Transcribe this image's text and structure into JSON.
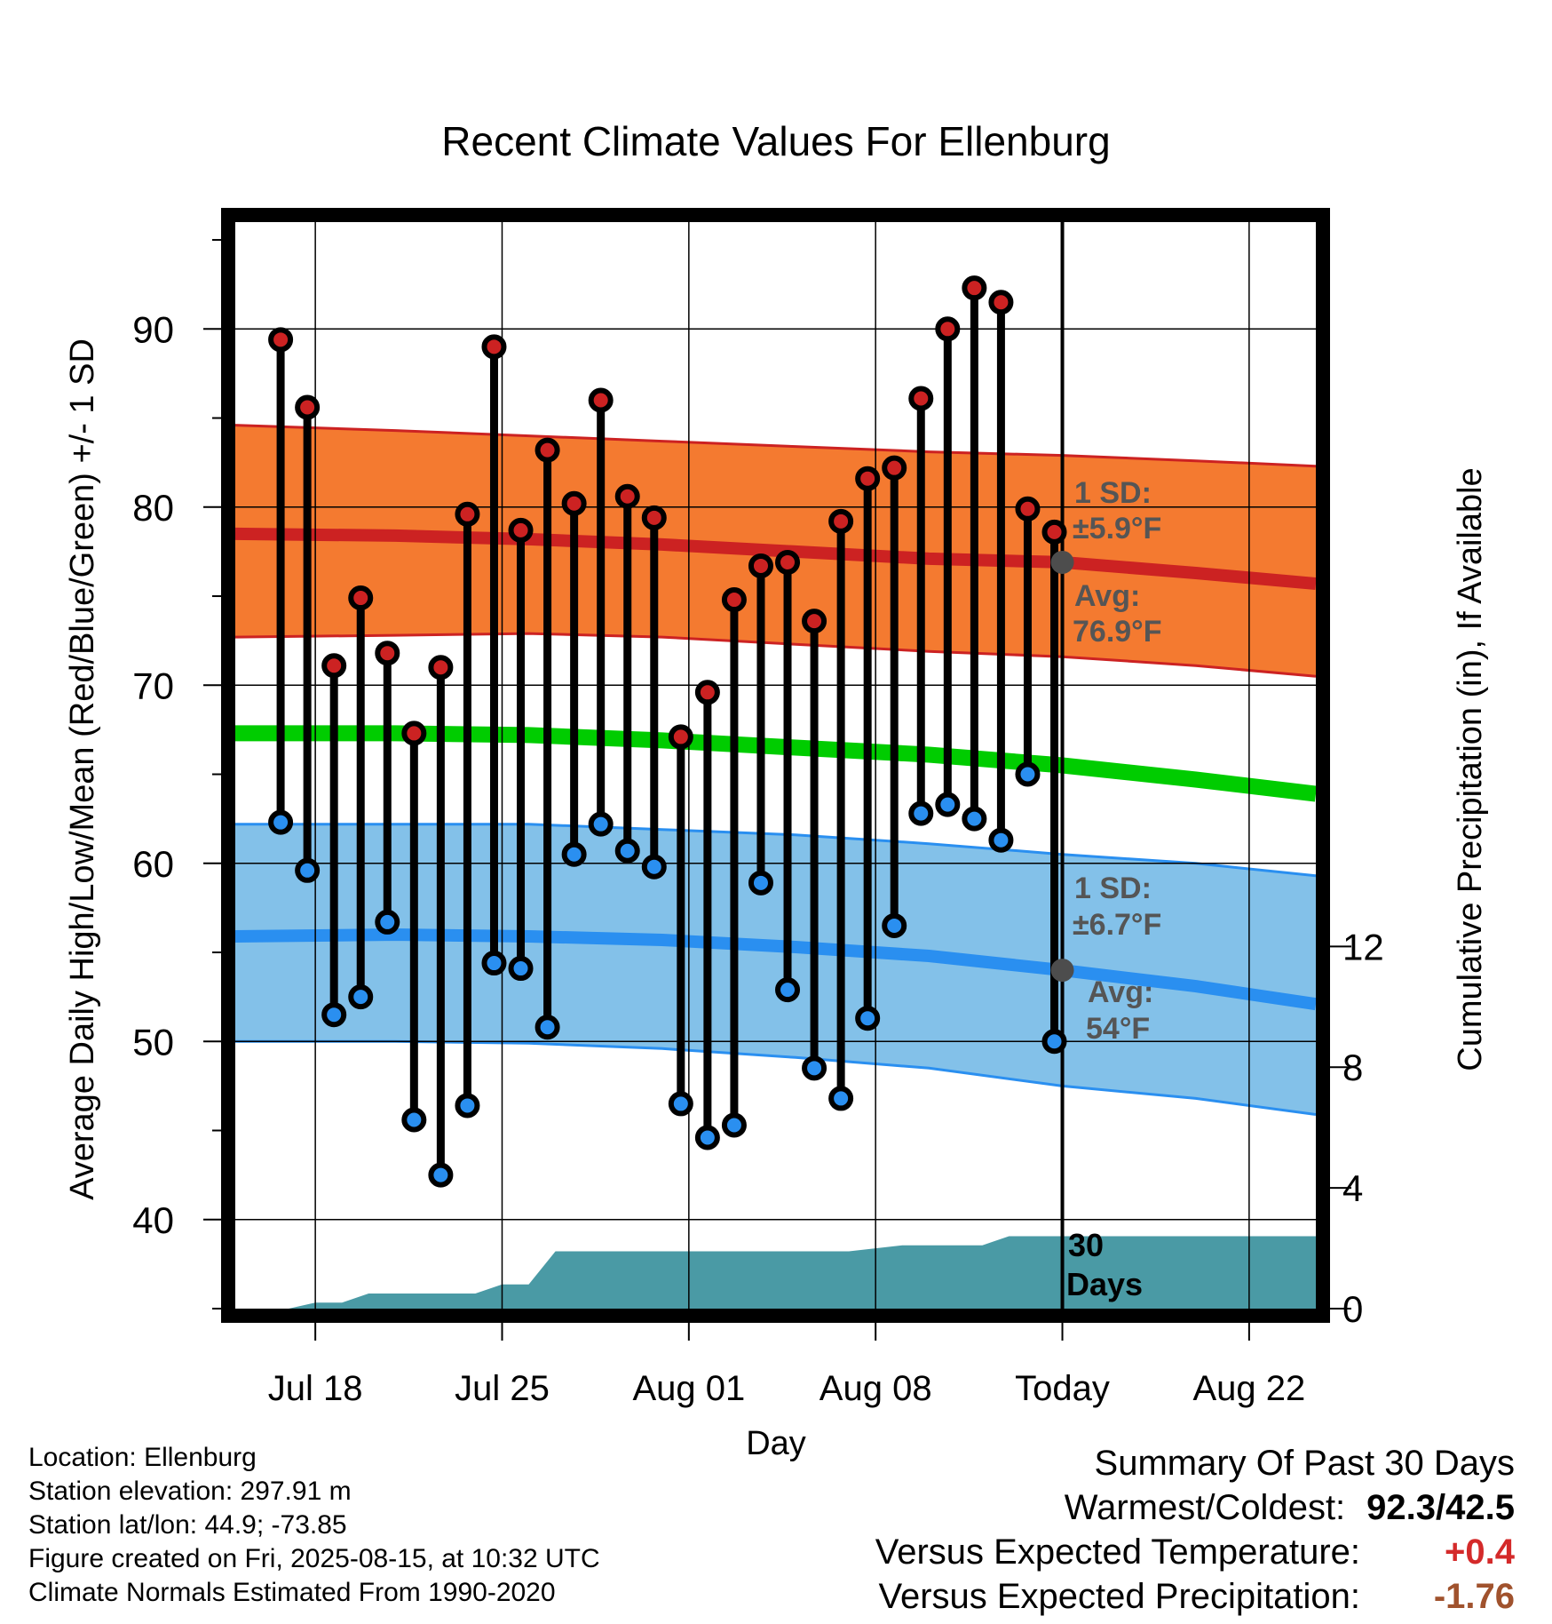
{
  "colors": {
    "high": "#cc2222",
    "low": "#2a8ff0",
    "mean": "#00cc00",
    "high_band": "#f47a30",
    "low_band": "#83c1e9",
    "precip": "#4a9aa5",
    "temp_anomaly": "#d42a2a",
    "precip_anomaly": "#a0522d",
    "today_marker": "#4d4d4d"
  },
  "chart_data": {
    "type": "line",
    "title": "Recent Climate Values For Ellenburg",
    "xlabel": "Day",
    "ylabel": "Average Daily High/Low/Mean (Red/Blue/Green) +/- 1 SD",
    "y2label": "Cumulative Precipitation (in), If Available",
    "ylim": [
      35,
      96
    ],
    "y2lim": [
      0,
      36
    ],
    "xlim": [
      "Jul 16",
      "Aug 24"
    ],
    "yticks": [
      40,
      50,
      60,
      70,
      80,
      90
    ],
    "y2ticks": [
      0,
      4,
      8,
      12
    ],
    "xtick_labels": [
      "Jul 18",
      "Jul 25",
      "Aug 01",
      "Aug 08",
      "Today",
      "Aug 22"
    ],
    "xtick_days": [
      2,
      9,
      16,
      23,
      30,
      37
    ],
    "today_day": 30,
    "grid": true,
    "days": [
      0.7,
      1.7,
      2.7,
      3.7,
      4.7,
      5.7,
      6.7,
      7.7,
      8.7,
      9.7,
      10.7,
      11.7,
      12.7,
      13.7,
      14.7,
      15.7,
      16.7,
      17.7,
      18.7,
      19.7,
      20.7,
      21.7,
      22.7,
      23.7,
      24.7,
      25.7,
      26.7,
      27.7,
      28.7,
      29.7
    ],
    "series": [
      {
        "name": "High",
        "values": [
          89.4,
          85.6,
          71.1,
          74.9,
          71.8,
          67.3,
          71.0,
          79.6,
          89.0,
          78.7,
          83.2,
          80.2,
          86.0,
          80.6,
          79.4,
          67.1,
          69.6,
          74.8,
          76.7,
          76.9,
          73.6,
          79.2,
          81.6,
          82.2,
          86.1,
          90.0,
          92.3,
          91.5,
          79.9,
          78.6
        ]
      },
      {
        "name": "Low",
        "values": [
          62.3,
          59.6,
          51.5,
          52.5,
          56.7,
          45.6,
          42.5,
          46.4,
          54.4,
          54.1,
          50.8,
          60.5,
          62.2,
          60.7,
          59.8,
          46.5,
          44.6,
          45.3,
          58.9,
          52.9,
          48.5,
          46.8,
          51.3,
          56.5,
          62.8,
          63.3,
          62.5,
          61.3,
          65.0,
          50.0
        ]
      }
    ],
    "normals": {
      "days": [
        -1,
        5,
        10,
        15,
        20,
        25,
        30,
        35,
        39.5
      ],
      "high_avg": [
        78.5,
        78.4,
        78.2,
        77.9,
        77.5,
        77.1,
        76.9,
        76.3,
        75.7
      ],
      "high_upper": [
        84.6,
        84.3,
        84.0,
        83.7,
        83.4,
        83.1,
        82.9,
        82.6,
        82.3
      ],
      "high_lower": [
        72.7,
        72.8,
        72.9,
        72.7,
        72.3,
        71.9,
        71.6,
        71.1,
        70.5
      ],
      "low_avg": [
        55.9,
        56.0,
        55.9,
        55.7,
        55.3,
        54.8,
        54.0,
        53.1,
        52.1
      ],
      "low_upper": [
        62.2,
        62.2,
        62.2,
        61.9,
        61.6,
        61.1,
        60.5,
        60.0,
        59.3
      ],
      "low_lower": [
        50.0,
        50.0,
        49.9,
        49.6,
        49.1,
        48.5,
        47.5,
        46.8,
        45.9
      ],
      "mean": [
        67.3,
        67.3,
        67.2,
        66.9,
        66.5,
        66.1,
        65.5,
        64.7,
        63.9
      ]
    },
    "precip_cumulative": {
      "days": [
        -1,
        1,
        2,
        3,
        4,
        5,
        8,
        9,
        10,
        11,
        12,
        15,
        20,
        22,
        24,
        25,
        27,
        28,
        39.5
      ],
      "values": [
        0,
        0,
        0.2,
        0.2,
        0.5,
        0.5,
        0.5,
        0.8,
        0.8,
        1.9,
        1.9,
        1.9,
        1.9,
        1.9,
        2.1,
        2.1,
        2.1,
        2.4,
        2.4
      ]
    },
    "annotations": {
      "high_sd_label": "1 SD:",
      "high_sd_value": "±5.9°F",
      "high_avg_label": "Avg:",
      "high_avg_value": "76.9°F",
      "low_sd_label": "1 SD:",
      "low_sd_value": "±6.7°F",
      "low_avg_label": "Avg:",
      "low_avg_value": "54°F",
      "period_num": "30",
      "period_unit": "Days"
    },
    "today_high_avg": 76.9,
    "today_low_avg": 54.0
  },
  "info": {
    "location": "Location: Ellenburg",
    "elevation": "Station elevation: 297.91 m",
    "latlon": "Station lat/lon: 44.9; -73.85",
    "created": "Figure created on Fri, 2025-08-15, at 10:32 UTC",
    "normals": "Climate Normals Estimated From 1990-2020"
  },
  "summary": {
    "title": "Summary Of Past 30 Days",
    "warm_cold_label": "Warmest/Coldest:",
    "warm_cold_value": "92.3/42.5",
    "temp_label": "Versus Expected Temperature:",
    "temp_value": "+0.4",
    "precip_label": "Versus Expected Precipitation:",
    "precip_value": "-1.76"
  }
}
